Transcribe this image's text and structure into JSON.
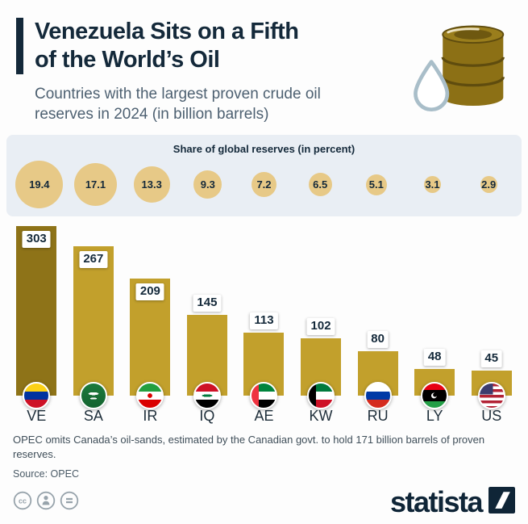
{
  "header": {
    "title": "Venezuela Sits on a Fifth of the World's Oil",
    "title_line1": "Venezuela Sits on a Fifth",
    "title_line2": "of the World’s Oil",
    "subtitle": "Countries with the largest proven crude oil reserves in 2024 (in billion barrels)"
  },
  "share_band": {
    "heading": "Share of global reserves (in percent)"
  },
  "chart_data": {
    "type": "bar",
    "title": "Venezuela Sits on a Fifth of the World's Oil",
    "subtitle": "Countries with the largest proven crude oil reserves in 2024 (in billion barrels)",
    "unit": "billion barrels",
    "categories": [
      "VE",
      "SA",
      "IR",
      "IQ",
      "AE",
      "KW",
      "RU",
      "LY",
      "US"
    ],
    "values": [
      303,
      267,
      209,
      145,
      113,
      102,
      80,
      48,
      45
    ],
    "shares_percent": [
      19.4,
      17.1,
      13.3,
      9.3,
      7.2,
      6.5,
      5.1,
      3.1,
      2.9
    ],
    "flag_names": [
      "venezuela",
      "saudi-arabia",
      "iran",
      "iraq",
      "united-arab-emirates",
      "kuwait",
      "russia",
      "libya",
      "united-states"
    ],
    "highlight_category": "VE",
    "bar_color": "#C2A02C",
    "highlight_bar_color": "#8E7318",
    "bubble_color": "#E7C987",
    "value_labels": true,
    "legend": false,
    "grid": false,
    "ylim": [
      0,
      303
    ]
  },
  "footer": {
    "note": "OPEC omits Canada’s oil-sands, estimated by the Canadian govt. to hold 171 billion barrels of proven reserves.",
    "source": "Source: OPEC"
  },
  "branding": {
    "logo_text": "statista",
    "license_icons": [
      "creative-commons-icon",
      "attribution-icon",
      "no-derivatives-icon"
    ]
  },
  "theme": {
    "navy": "#14293A",
    "band_background": "#E9EEF4",
    "subtitle_color": "#4D6071"
  }
}
